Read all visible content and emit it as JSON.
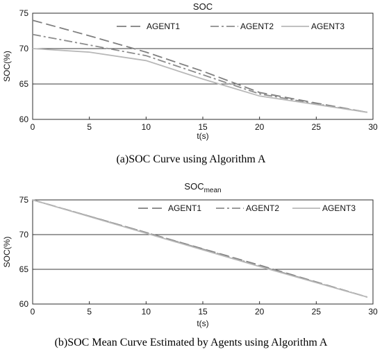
{
  "chart_data": [
    {
      "type": "line",
      "title": "SOC",
      "title_sub": "",
      "xlabel": "t(s)",
      "ylabel": "SOC(%)",
      "caption": "(a)SOC Curve using Algorithm A",
      "xlim": [
        0,
        30
      ],
      "ylim": [
        60,
        75
      ],
      "xticks": [
        0,
        5,
        10,
        15,
        20,
        25,
        30
      ],
      "yticks": [
        60,
        65,
        70,
        75
      ],
      "grid": "horizontal",
      "legend_position": "top",
      "series": [
        {
          "name": "AGENT1",
          "color": "#7f7f7f",
          "dash": "dashed",
          "x": [
            0,
            5,
            10,
            15,
            20,
            25,
            29.5
          ],
          "y": [
            74,
            71.8,
            69.5,
            66.8,
            63.8,
            62.3,
            61
          ]
        },
        {
          "name": "AGENT2",
          "color": "#8c8c8c",
          "dash": "dashdot",
          "x": [
            0,
            5,
            10,
            15,
            20,
            25,
            29.5
          ],
          "y": [
            72,
            70.5,
            69,
            66.3,
            63.6,
            62.2,
            61
          ]
        },
        {
          "name": "AGENT3",
          "color": "#b8b8b8",
          "dash": "solid",
          "x": [
            0,
            5,
            10,
            15,
            20,
            25,
            29.5
          ],
          "y": [
            70,
            69.5,
            68.3,
            65.7,
            63.3,
            62.1,
            61
          ]
        }
      ]
    },
    {
      "type": "line",
      "title": "SOC",
      "title_sub": "mean",
      "xlabel": "t(s)",
      "ylabel": "SOC(%)",
      "caption": "(b)SOC Mean Curve Estimated by Agents using Algorithm A",
      "xlim": [
        0,
        30
      ],
      "ylim": [
        60,
        75
      ],
      "xticks": [
        0,
        5,
        10,
        15,
        20,
        25,
        30
      ],
      "yticks": [
        60,
        65,
        70,
        75
      ],
      "grid": "horizontal",
      "legend_position": "top",
      "series": [
        {
          "name": "AGENT1",
          "color": "#7f7f7f",
          "dash": "dashed",
          "x": [
            0,
            10,
            20,
            29.5
          ],
          "y": [
            75,
            70.3,
            65.6,
            61
          ]
        },
        {
          "name": "AGENT2",
          "color": "#8c8c8c",
          "dash": "dashdot",
          "x": [
            0,
            10,
            20,
            29.5
          ],
          "y": [
            75,
            70.3,
            65.5,
            61
          ]
        },
        {
          "name": "AGENT3",
          "color": "#b8b8b8",
          "dash": "solid",
          "x": [
            0,
            10,
            20,
            29.5
          ],
          "y": [
            75,
            70.2,
            65.4,
            61
          ]
        }
      ]
    }
  ]
}
